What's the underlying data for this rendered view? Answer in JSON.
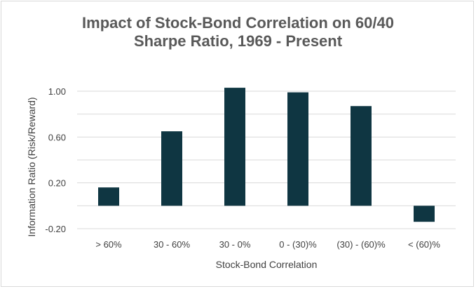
{
  "chart_data": {
    "type": "bar",
    "title_lines": [
      "Impact of Stock-Bond Correlation on 60/40",
      "Sharpe Ratio, 1969 - Present"
    ],
    "categories": [
      "> 60%",
      "30 - 60%",
      "30 - 0%",
      "0 - (30)%",
      "(30) - (60)%",
      "< (60)%"
    ],
    "values": [
      0.16,
      0.65,
      1.03,
      0.99,
      0.87,
      -0.14
    ],
    "xlabel": "Stock-Bond Correlation",
    "ylabel": "Information Ratio (Risk/Reward)",
    "yticks": [
      "1.00",
      "0.60",
      "0.20",
      "-0.20"
    ],
    "ytick_values": [
      1.0,
      0.6,
      0.2,
      -0.2
    ],
    "ylim": [
      -0.2,
      1.0
    ],
    "grid": true,
    "bar_color": "#0f3642",
    "grid_color": "#d9d9d9"
  }
}
